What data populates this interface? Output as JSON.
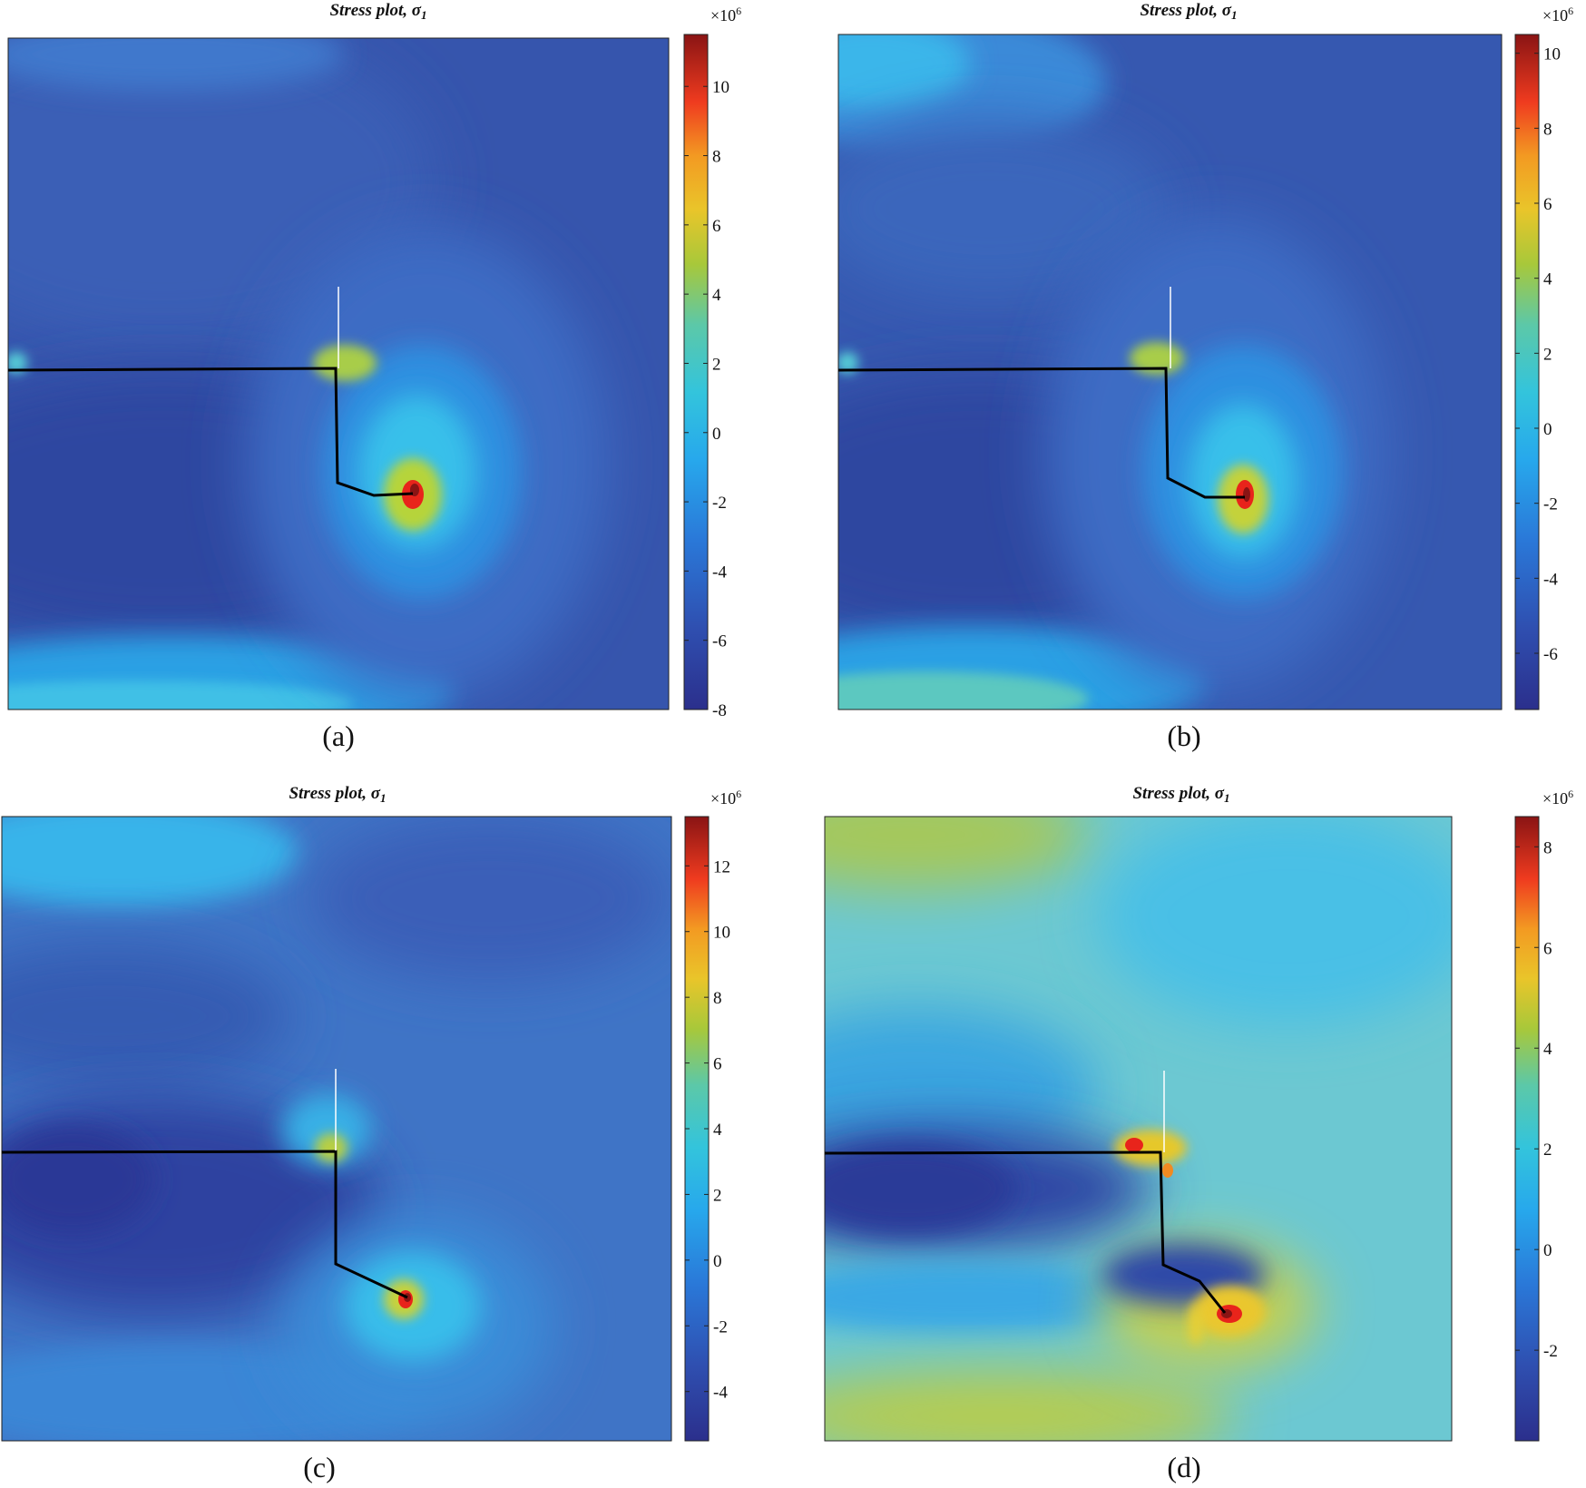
{
  "figure": {
    "panels": [
      {
        "id": "a",
        "title": "Stress plot, ",
        "title_symbol": "σ",
        "title_sub": "1",
        "caption": "(a)",
        "colorbar_multiplier": "×10",
        "colorbar_exponent": "6",
        "colorbar_ticks": [
          "10",
          "8",
          "6",
          "4",
          "2",
          "0",
          "-2",
          "-4",
          "-6",
          "-8"
        ]
      },
      {
        "id": "b",
        "title": "Stress plot, ",
        "title_symbol": "σ",
        "title_sub": "1",
        "caption": "(b)",
        "colorbar_multiplier": "×10",
        "colorbar_exponent": "6",
        "colorbar_ticks": [
          "10",
          "8",
          "6",
          "4",
          "2",
          "0",
          "-2",
          "-4",
          "-6"
        ]
      },
      {
        "id": "c",
        "title": "Stress plot, ",
        "title_symbol": "σ",
        "title_sub": "1",
        "caption": "(c)",
        "colorbar_multiplier": "×10",
        "colorbar_exponent": "6",
        "colorbar_ticks": [
          "12",
          "10",
          "8",
          "6",
          "4",
          "2",
          "0",
          "-2",
          "-4"
        ]
      },
      {
        "id": "d",
        "title": "Stress plot, ",
        "title_symbol": "σ",
        "title_sub": "1",
        "caption": "(d)",
        "colorbar_multiplier": "×10",
        "colorbar_exponent": "6",
        "colorbar_ticks": [
          "8",
          "6",
          "4",
          "2",
          "0",
          "-2"
        ]
      }
    ]
  },
  "chart_data": [
    {
      "type": "heatmap",
      "quantity": "σ1",
      "colormap": "jet",
      "colorbar_range": [
        -8,
        11.5
      ],
      "colorbar_ticks": [
        10,
        8,
        6,
        4,
        2,
        0,
        -2,
        -4,
        -6,
        -8
      ],
      "background_level": -5.5,
      "peak_level": 11.5
    },
    {
      "type": "heatmap",
      "quantity": "σ1",
      "colormap": "jet",
      "colorbar_range": [
        -7.5,
        10.5
      ],
      "colorbar_ticks": [
        10,
        8,
        6,
        4,
        2,
        0,
        -2,
        -4,
        -6
      ],
      "background_level": -5,
      "peak_level": 10.5
    },
    {
      "type": "heatmap",
      "quantity": "σ1",
      "colormap": "jet",
      "colorbar_range": [
        -5.5,
        13.5
      ],
      "colorbar_ticks": [
        12,
        10,
        8,
        6,
        4,
        2,
        0,
        -2,
        -4
      ],
      "background_level": -3.5,
      "peak_level": 13.5
    },
    {
      "type": "heatmap",
      "quantity": "σ1",
      "colormap": "jet",
      "colorbar_range": [
        -3.8,
        8.6
      ],
      "colorbar_ticks": [
        8,
        6,
        4,
        2,
        0,
        -2
      ],
      "background_level": 0,
      "peak_level": 8.6
    }
  ]
}
